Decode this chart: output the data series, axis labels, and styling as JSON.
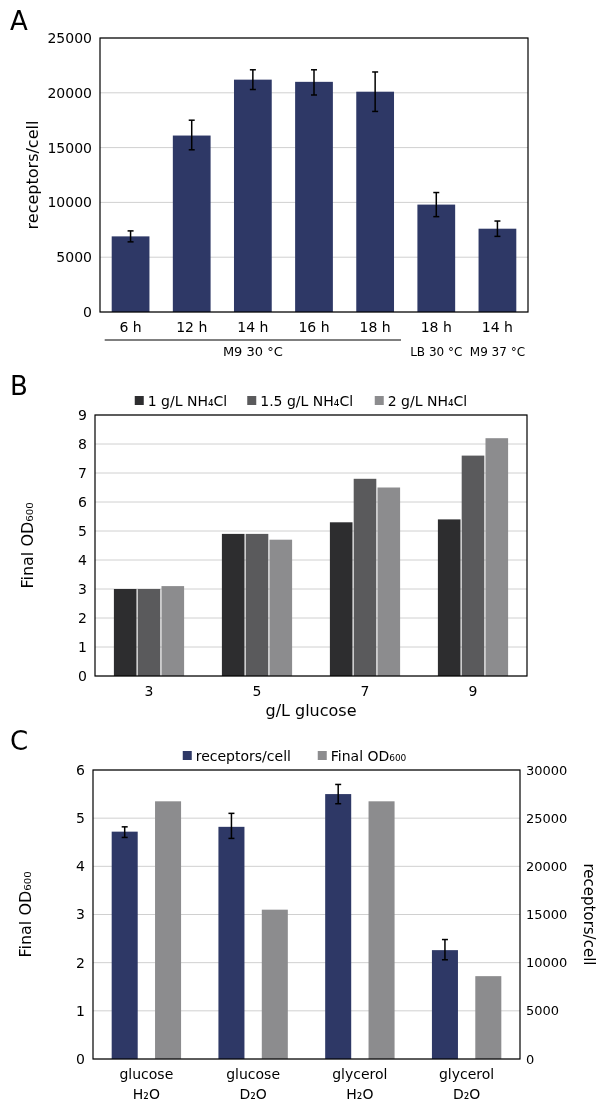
{
  "chart_data": [
    {
      "type": "bar",
      "title": "A",
      "ylabel": "receptors/cell",
      "categories": [
        "6 h",
        "12 h",
        "14 h",
        "16 h",
        "18 h",
        "18 h",
        "14 h"
      ],
      "series": [
        {
          "color": "#2e3866",
          "values": [
            6900,
            16100,
            21200,
            21000,
            20100,
            9800,
            7600
          ],
          "errors": [
            [
              6400,
              7400
            ],
            [
              14800,
              17500
            ],
            [
              20300,
              22100
            ],
            [
              19800,
              22100
            ],
            [
              18300,
              21900
            ],
            [
              8700,
              10900
            ],
            [
              6900,
              8300
            ]
          ]
        }
      ],
      "ylim": [
        0,
        25000
      ],
      "yticks": [
        0,
        5000,
        10000,
        15000,
        20000,
        25000
      ],
      "grid": "y",
      "legend": false,
      "annotations": [
        "M9 30 °C",
        "LB 30 °C",
        "M9 37 °C"
      ]
    },
    {
      "type": "bar",
      "title": "B",
      "ylabel": "Final OD₆₀₀",
      "xlabel": "g/L glucose",
      "categories": [
        "3",
        "5",
        "7",
        "9"
      ],
      "series": [
        {
          "name": "1 g/L NH₄Cl",
          "color": "#2d2d2f",
          "values": [
            3.0,
            4.9,
            5.3,
            5.4
          ]
        },
        {
          "name": "1.5 g/L NH₄Cl",
          "color": "#5a5a5c",
          "values": [
            3.0,
            4.9,
            6.8,
            7.6
          ]
        },
        {
          "name": "2 g/L NH₄Cl",
          "color": "#8c8c8e",
          "values": [
            3.1,
            4.7,
            6.5,
            8.2
          ]
        }
      ],
      "ylim": [
        0,
        9
      ],
      "yticks": [
        0,
        1,
        2,
        3,
        4,
        5,
        6,
        7,
        8,
        9
      ],
      "grid": "y",
      "legend": "top"
    },
    {
      "type": "bar",
      "title": "C",
      "ylabel": "Final OD₆₀₀",
      "y2label": "receptors/cell",
      "categories": [
        "glucose\nH₂O",
        "glucose\nD₂O",
        "glycerol\nH₂O",
        "glycerol\nD₂O"
      ],
      "series": [
        {
          "name": "receptors/cell",
          "color": "#2e3866",
          "axis": "y2",
          "values": [
            23600,
            24100,
            27500,
            11300
          ],
          "errors": [
            [
              23000,
              24100
            ],
            [
              22900,
              25500
            ],
            [
              26500,
              28500
            ],
            [
              10300,
              12400
            ]
          ]
        },
        {
          "name": "Final OD₆₀₀",
          "color": "#8c8c8e",
          "values": [
            5.35,
            3.1,
            5.35,
            1.72
          ]
        }
      ],
      "ylim": [
        0,
        6
      ],
      "yticks": [
        0,
        1,
        2,
        3,
        4,
        5,
        6
      ],
      "y2lim": [
        0,
        30000
      ],
      "y2ticks": [
        0,
        5000,
        10000,
        15000,
        20000,
        25000,
        30000
      ],
      "grid": "y",
      "legend": "top"
    }
  ]
}
